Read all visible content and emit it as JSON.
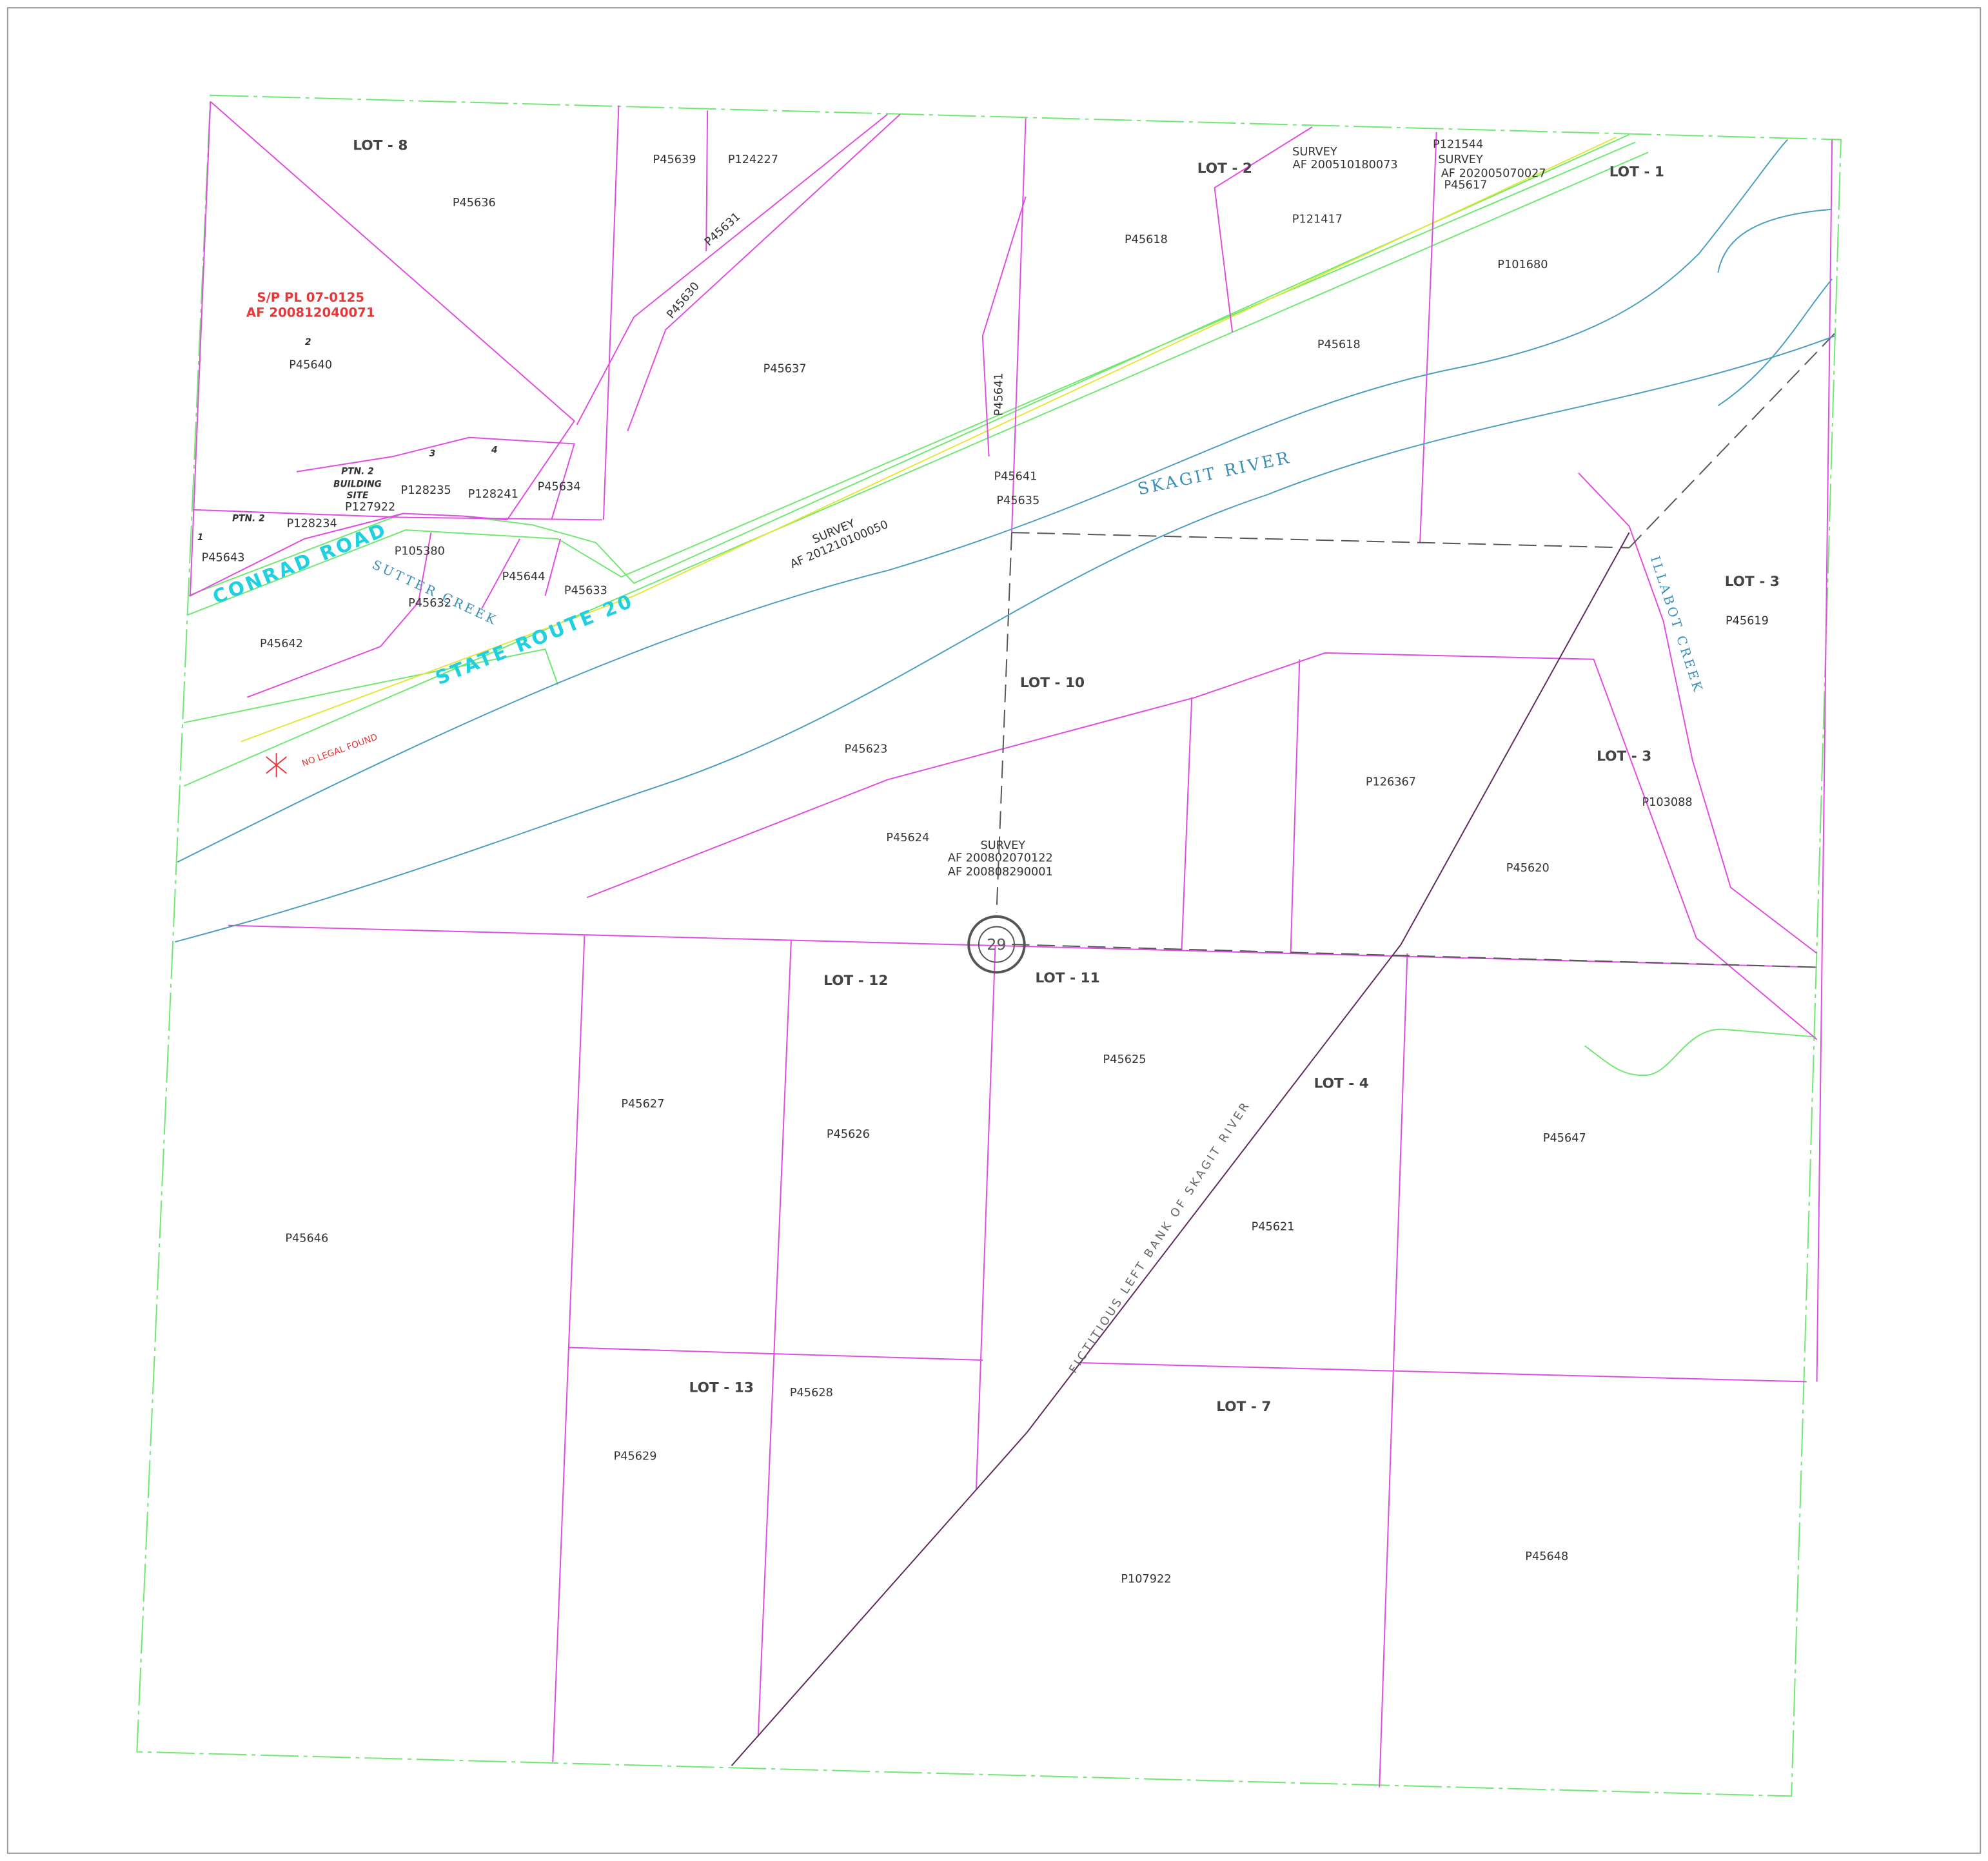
{
  "lots": [
    "LOT - 8",
    "LOT - 2",
    "LOT - 1",
    "LOT - 3",
    "LOT - 3",
    "LOT - 10",
    "LOT - 12",
    "LOT - 11",
    "LOT - 4",
    "LOT - 13",
    "LOT - 7"
  ],
  "parcels": [
    "P45636",
    "P45639",
    "P124227",
    "P45631",
    "P45630",
    "P45637",
    "P45618",
    "P121417",
    "P121544",
    "P45617",
    "P101680",
    "P45618",
    "P45641",
    "P45641",
    "P45635",
    "P45640",
    "P128235",
    "P128241",
    "P45634",
    "P127922",
    "P128234",
    "P45643",
    "P105380",
    "P45644",
    "P45633",
    "P45632",
    "P45642",
    "P45623",
    "P45624",
    "P126367",
    "P45619",
    "P103088",
    "P45620",
    "P45625",
    "P45627",
    "P45626",
    "P45647",
    "P45646",
    "P45621",
    "P45628",
    "P45629",
    "P45648",
    "P107922"
  ],
  "surveys": [
    {
      "label": "SURVEY",
      "af": "AF 200510180073"
    },
    {
      "label": "SURVEY",
      "af": "AF 202005070027"
    },
    {
      "label": "SURVEY",
      "af": "AF 201210100050"
    },
    {
      "label": "SURVEY",
      "af": "AF 200802070122",
      "af2": "AF 200808290001"
    }
  ],
  "short_plat": {
    "number": "S/P PL 07-0125",
    "af": "AF 200812040071"
  },
  "notes": {
    "no_legal": "NO LEGAL FOUND",
    "left_bank": "FICTITIOUS LEFT BANK OF SKAGIT RIVER"
  },
  "roads": [
    "CONRAD ROAD",
    "STATE ROUTE 20"
  ],
  "water": [
    "SKAGIT RIVER",
    "SUTTER CREEK",
    "ILLABOT CREEK"
  ],
  "building_site": [
    "PTN. 2",
    "BUILDING",
    "SITE",
    "PTN. 2"
  ],
  "sp_lots": [
    "2",
    "3",
    "4",
    "1"
  ],
  "section": "29"
}
